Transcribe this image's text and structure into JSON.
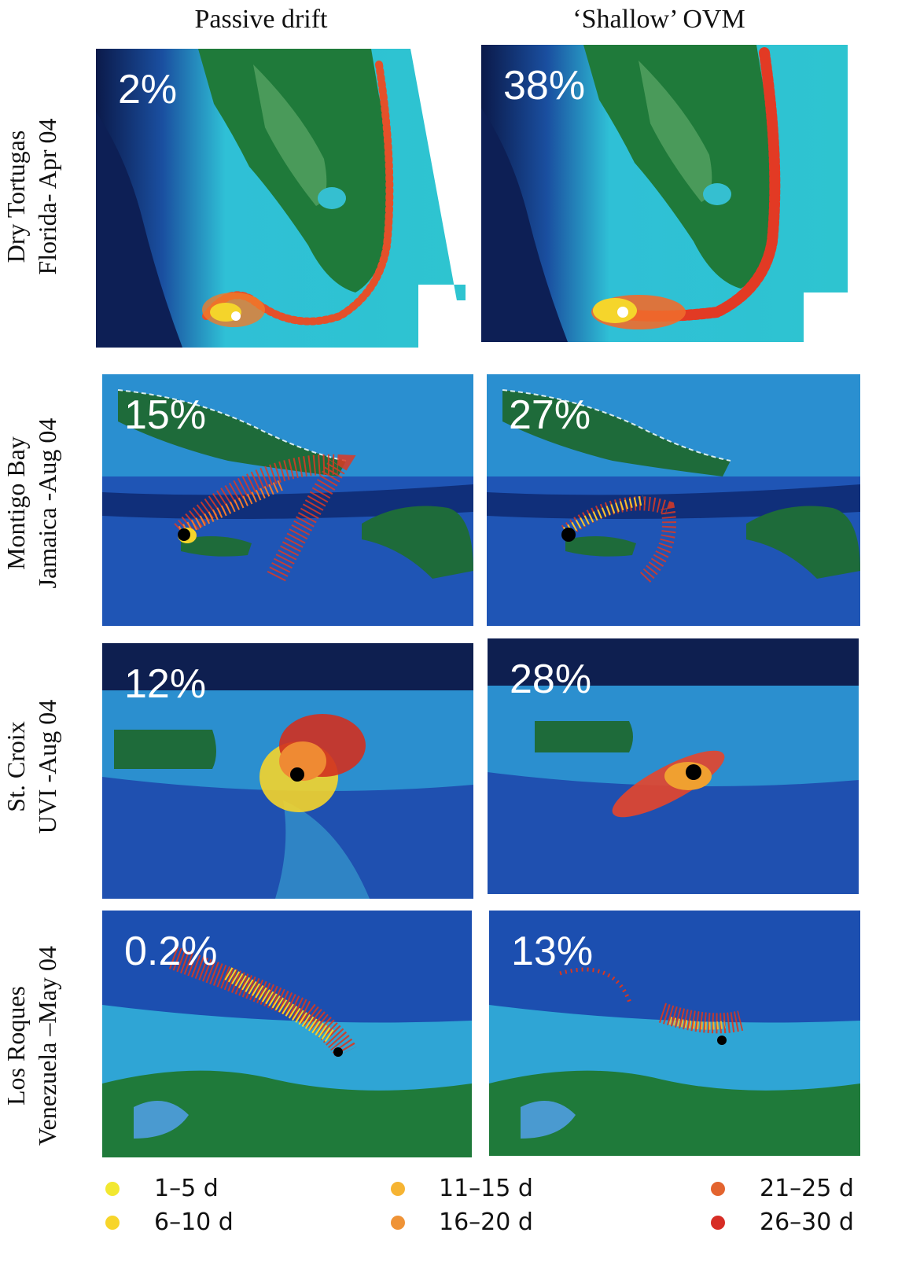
{
  "columns": {
    "left": "Passive drift",
    "right": "‘Shallow’ OVM"
  },
  "rows": [
    {
      "line1": "Dry Tortugas",
      "line2": "Florida- Apr 04",
      "left_pct": "2%",
      "right_pct": "38%"
    },
    {
      "line1": "Montigo Bay",
      "line2": "Jamaica -Aug 04",
      "left_pct": "15%",
      "right_pct": "27%"
    },
    {
      "line1": "St. Croix",
      "line2": "UVI -Aug 04",
      "left_pct": "12%",
      "right_pct": "28%"
    },
    {
      "line1": "Los Roques",
      "line2": "Venezuela –May 04",
      "left_pct": "0.2%",
      "right_pct": "13%"
    }
  ],
  "legend": [
    {
      "label": "1–5 d",
      "color": "#f2e830"
    },
    {
      "label": "6–10 d",
      "color": "#f7d52a"
    },
    {
      "label": "11–15 d",
      "color": "#f6b433"
    },
    {
      "label": "16–20 d",
      "color": "#ef9336"
    },
    {
      "label": "21–25 d",
      "color": "#e3642f"
    },
    {
      "label": "26–30 d",
      "color": "#d72d25"
    }
  ]
}
